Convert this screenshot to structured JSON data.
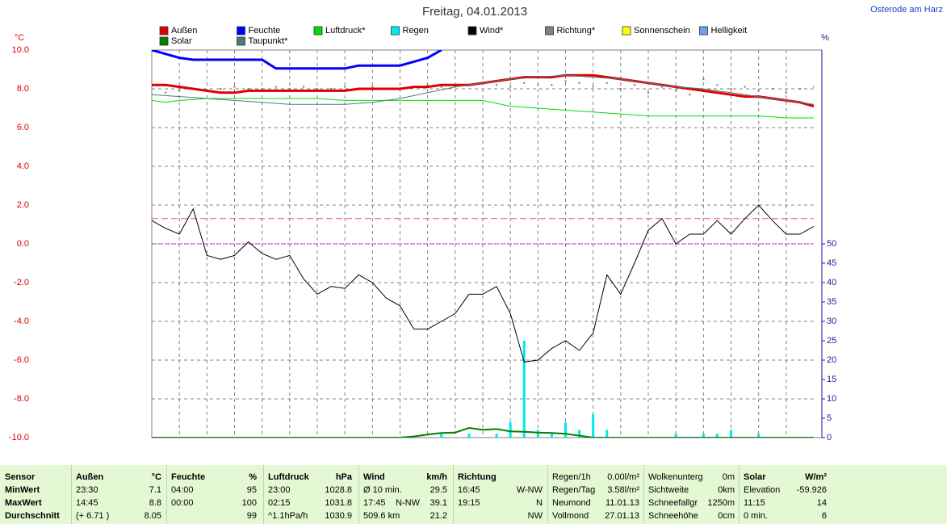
{
  "location": "Osterode am Harz",
  "chart_data": {
    "type": "line",
    "title": "Freitag, 04.01.2013",
    "ylabel": "°C",
    "y2label": "%",
    "x": [
      0,
      0.5,
      1,
      1.5,
      2,
      2.5,
      3,
      3.5,
      4,
      4.5,
      5,
      5.5,
      6,
      6.5,
      7,
      7.5,
      8,
      8.5,
      9,
      9.5,
      10,
      10.5,
      11,
      11.5,
      12,
      12.5,
      13,
      13.5,
      14,
      14.5,
      15,
      15.5,
      16,
      16.5,
      17,
      17.5,
      18,
      18.5,
      19,
      19.5,
      20,
      20.5,
      21,
      21.5,
      22,
      22.5,
      23,
      23.5,
      24
    ],
    "xlim": [
      0,
      24
    ],
    "xgrid": [
      1,
      2,
      3,
      4,
      5,
      6,
      7,
      8,
      9,
      10,
      11,
      12,
      13,
      14,
      15,
      16,
      17,
      18,
      19,
      20,
      21,
      22,
      23
    ],
    "ylim": [
      -10,
      10
    ],
    "yticks": [
      {
        "value": -10,
        "label": "-10.0"
      },
      {
        "value": -8,
        "label": "-8.0"
      },
      {
        "value": -6,
        "label": "-6.0"
      },
      {
        "value": -4,
        "label": "-4.0"
      },
      {
        "value": -2,
        "label": "-2.0"
      },
      {
        "value": 0,
        "label": "0.0"
      },
      {
        "value": 2,
        "label": "2.0"
      },
      {
        "value": 4,
        "label": "4.0"
      },
      {
        "value": 6,
        "label": "6.0"
      },
      {
        "value": 8,
        "label": "8.0"
      },
      {
        "value": 10,
        "label": "10.0"
      }
    ],
    "y2lim": [
      0,
      100
    ],
    "y2ticks": [
      0,
      5,
      10,
      15,
      20,
      25,
      30,
      35,
      40,
      45,
      50
    ],
    "grid": true,
    "reference_lines": [
      {
        "value": 1.3,
        "color": "#e06060",
        "dash": "8,4"
      },
      {
        "value": 0,
        "color": "#c000c0",
        "dash": "2,2"
      }
    ],
    "series": [
      {
        "name": "Außen",
        "color": "#e00000",
        "style": "line",
        "width": 3,
        "values": [
          8.2,
          8.2,
          8.1,
          8.0,
          7.9,
          7.8,
          7.8,
          7.9,
          7.9,
          7.9,
          7.9,
          7.9,
          7.9,
          7.9,
          7.9,
          8.0,
          8.0,
          8.0,
          8.0,
          8.1,
          8.1,
          8.2,
          8.2,
          8.2,
          8.3,
          8.4,
          8.5,
          8.6,
          8.6,
          8.6,
          8.7,
          8.7,
          8.7,
          8.6,
          8.5,
          8.4,
          8.3,
          8.2,
          8.1,
          8.0,
          7.9,
          7.8,
          7.7,
          7.6,
          7.6,
          7.5,
          7.4,
          7.3,
          7.1
        ]
      },
      {
        "name": "Feuchte",
        "color": "#0000ff",
        "style": "line",
        "width": 3,
        "values": [
          10.0,
          9.8,
          9.6,
          9.5,
          9.5,
          9.5,
          9.5,
          9.5,
          9.5,
          9.05,
          9.05,
          9.05,
          9.05,
          9.05,
          9.05,
          9.2,
          9.2,
          9.2,
          9.2,
          9.4,
          9.6,
          10.0,
          null,
          null,
          null,
          null,
          null,
          null,
          null,
          null,
          null,
          null,
          null,
          null,
          null,
          null,
          null,
          null,
          null,
          null,
          null,
          null,
          null,
          null,
          null,
          null,
          null,
          null,
          null
        ]
      },
      {
        "name": "Luftdruck*",
        "color": "#00dd00",
        "style": "line",
        "width": 1,
        "values": [
          7.4,
          7.3,
          7.4,
          7.45,
          7.5,
          7.5,
          7.5,
          7.5,
          7.5,
          7.5,
          7.5,
          7.5,
          7.5,
          7.45,
          7.4,
          7.4,
          7.4,
          7.4,
          7.4,
          7.4,
          7.4,
          7.4,
          7.4,
          7.4,
          7.4,
          7.25,
          7.1,
          7.05,
          7.0,
          6.95,
          6.9,
          6.85,
          6.8,
          6.75,
          6.7,
          6.65,
          6.6,
          6.6,
          6.6,
          6.6,
          6.6,
          6.6,
          6.6,
          6.6,
          6.6,
          6.55,
          6.5,
          6.5,
          6.5
        ]
      },
      {
        "name": "Regen",
        "color": "#00e8f0",
        "style": "bar",
        "axis": "y2",
        "values": [
          0,
          0,
          0,
          0,
          0,
          0,
          0,
          0,
          0,
          0,
          0,
          0,
          0,
          0,
          0,
          0,
          0,
          0,
          0,
          0,
          0,
          1,
          0,
          1,
          0,
          1,
          4,
          25,
          2,
          1,
          4,
          2,
          6,
          2,
          0,
          0,
          0,
          0,
          1,
          0,
          1,
          1,
          2,
          0,
          1,
          0,
          0,
          0,
          0
        ]
      },
      {
        "name": "Wind*",
        "color": "#000000",
        "style": "line",
        "width": 1,
        "values": [
          1.2,
          0.8,
          0.5,
          1.8,
          -0.6,
          -0.8,
          -0.6,
          0.1,
          -0.5,
          -0.8,
          -0.6,
          -1.8,
          -2.6,
          -2.2,
          -2.3,
          -1.6,
          -2.0,
          -2.8,
          -3.2,
          -4.4,
          -4.4,
          -4.0,
          -3.6,
          -2.6,
          -2.6,
          -2.2,
          -3.6,
          -6.1,
          -6.0,
          -5.4,
          -5.0,
          -5.5,
          -4.6,
          -1.6,
          -2.6,
          -1.0,
          0.7,
          1.3,
          0.0,
          0.5,
          0.5,
          1.2,
          0.5,
          1.3,
          2.0,
          1.2,
          0.5,
          0.5,
          0.9
        ]
      },
      {
        "name": "Richtung*",
        "color": "#808080",
        "style": "dots",
        "values": [
          7.7,
          7.8,
          7.9,
          8.0,
          7.9,
          8.0,
          8.1,
          8.0,
          8.0,
          8.1,
          8.0,
          8.1,
          8.0,
          8.0,
          8.1,
          8.0,
          8.1,
          8.0,
          8.0,
          8.1,
          8.2,
          8.1,
          8.1,
          8.2,
          8.3,
          8.2,
          8.1,
          8.3,
          8.2,
          8.2,
          8.4,
          8.3,
          8.1,
          8.3,
          8.0,
          8.2,
          7.8,
          8.1,
          7.9,
          7.7,
          8.5,
          8.2,
          8.0,
          8.1,
          7.9,
          8.0,
          7.8,
          8.0,
          8.1
        ]
      },
      {
        "name": "Sonnenschein",
        "color": "#ffff00"
      },
      {
        "name": "Helligkeit",
        "color": "#6fa0e8"
      },
      {
        "name": "Solar",
        "color": "#008000",
        "style": "line",
        "width": 2,
        "axis": "y2",
        "values": [
          0,
          0,
          0,
          0,
          0,
          0,
          0,
          0,
          0,
          0,
          0,
          0,
          0,
          0,
          0,
          0,
          0,
          0,
          0,
          0.3,
          0.8,
          1.2,
          1.3,
          2.5,
          2.0,
          2.2,
          1.6,
          1.5,
          1.3,
          1.2,
          1.0,
          0.5,
          0,
          0,
          0,
          0,
          0,
          0,
          0,
          0,
          0,
          0,
          0,
          0,
          0,
          0,
          0,
          0,
          0
        ]
      },
      {
        "name": "Taupunkt*",
        "color": "#4e7a7a",
        "style": "line",
        "width": 1,
        "values": [
          7.7,
          7.65,
          7.6,
          7.55,
          7.5,
          7.45,
          7.4,
          7.35,
          7.3,
          7.25,
          7.2,
          7.2,
          7.2,
          7.2,
          7.2,
          7.25,
          7.3,
          7.4,
          7.5,
          7.65,
          7.8,
          7.95,
          8.1,
          8.2,
          8.3,
          8.4,
          8.5,
          8.55,
          8.6,
          8.65,
          8.7,
          8.65,
          8.6,
          8.55,
          8.5,
          8.4,
          8.3,
          8.2,
          8.1,
          8.05,
          8.0,
          7.9,
          7.8,
          7.7,
          7.6,
          7.5,
          7.4,
          7.3,
          7.2
        ]
      }
    ]
  },
  "table": {
    "groups": [
      {
        "bold": true,
        "rows": [
          [
            "Sensor"
          ],
          [
            "MinWert"
          ],
          [
            "MaxWert"
          ],
          [
            "Durchschnitt"
          ]
        ]
      },
      {
        "header": [
          "Außen",
          "°C"
        ],
        "rows": [
          [
            "23:30",
            "7.1"
          ],
          [
            "14:45",
            "8.8"
          ],
          [
            "(+ 6.71 )",
            "8.05"
          ]
        ]
      },
      {
        "header": [
          "Feuchte",
          "%"
        ],
        "rows": [
          [
            "04:00",
            "95"
          ],
          [
            "00:00",
            "100"
          ],
          [
            "99"
          ]
        ]
      },
      {
        "header": [
          "Luftdruck",
          "hPa"
        ],
        "rows": [
          [
            "23:00",
            "1028.8"
          ],
          [
            "02:15",
            "1031.8"
          ],
          [
            "^1.1hPa/h",
            "1030.9"
          ]
        ]
      },
      {
        "header": [
          "Wind",
          "km/h"
        ],
        "rows": [
          [
            "Ø 10 min.",
            "29.5"
          ],
          [
            "17:45",
            "N-NW",
            "39.1"
          ],
          [
            "509.6 km",
            "21.2"
          ]
        ]
      },
      {
        "header": [
          "Richtung"
        ],
        "rows": [
          [
            "16:45",
            "W-NW"
          ],
          [
            "19:15",
            "N"
          ],
          [
            "NW"
          ]
        ]
      },
      {
        "rows": [
          [
            "Regen/1h",
            "0.00l/m²"
          ],
          [
            "Regen/Tag",
            "3.58l/m²"
          ],
          [
            "Neumond",
            "11.01.13"
          ],
          [
            "Vollmond",
            "27.01.13"
          ]
        ]
      },
      {
        "rows": [
          [
            "Wolkenunterg",
            "0m"
          ],
          [
            "Sichtweite",
            "0km"
          ],
          [
            "Schneefallgr",
            "1250m"
          ],
          [
            "Schneehöhe",
            "0cm"
          ]
        ]
      },
      {
        "header": [
          "Solar",
          "W/m²"
        ],
        "rows": [
          [
            "Elevation",
            "-59.926"
          ],
          [
            "11:15",
            "14"
          ],
          [
            "0 min.",
            "6"
          ]
        ]
      }
    ]
  }
}
